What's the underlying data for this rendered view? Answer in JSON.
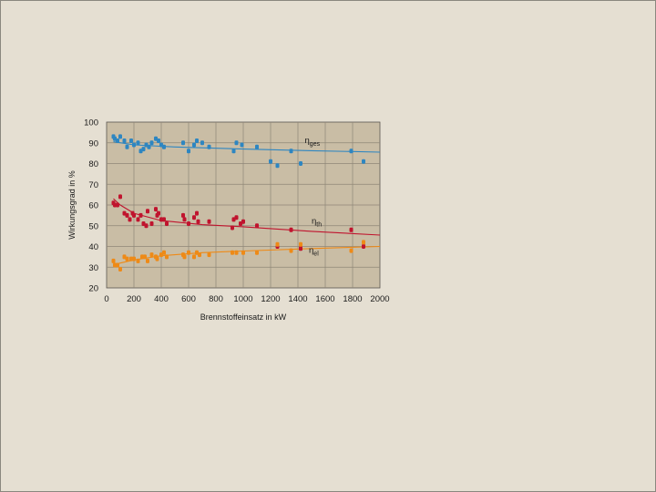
{
  "chart_data": {
    "type": "scatter",
    "xlabel": "Brennstoffeinsatz in kW",
    "ylabel": "Wirkungsgrad in %",
    "xlim": [
      0,
      2000
    ],
    "ylim": [
      20,
      100
    ],
    "xticks": [
      0,
      200,
      400,
      600,
      800,
      1000,
      1200,
      1400,
      1600,
      1800,
      2000
    ],
    "yticks": [
      20,
      30,
      40,
      50,
      60,
      70,
      80,
      90,
      100
    ],
    "grid": true,
    "background": "#c9bda5",
    "series": [
      {
        "name": "ηges",
        "label_main": "η",
        "label_sub": "ges",
        "color": "#2e86c1",
        "points": [
          [
            50,
            93
          ],
          [
            60,
            92
          ],
          [
            80,
            91
          ],
          [
            100,
            93
          ],
          [
            130,
            91
          ],
          [
            150,
            88
          ],
          [
            180,
            91
          ],
          [
            200,
            89
          ],
          [
            230,
            90
          ],
          [
            250,
            86
          ],
          [
            270,
            87
          ],
          [
            290,
            89
          ],
          [
            310,
            88
          ],
          [
            330,
            90
          ],
          [
            360,
            92
          ],
          [
            380,
            91
          ],
          [
            400,
            89
          ],
          [
            420,
            88
          ],
          [
            560,
            90
          ],
          [
            600,
            86
          ],
          [
            640,
            89
          ],
          [
            660,
            91
          ],
          [
            700,
            90
          ],
          [
            750,
            88
          ],
          [
            930,
            86
          ],
          [
            950,
            90
          ],
          [
            990,
            89
          ],
          [
            1100,
            88
          ],
          [
            1200,
            81
          ],
          [
            1250,
            79
          ],
          [
            1350,
            86
          ],
          [
            1420,
            80
          ],
          [
            1790,
            86
          ],
          [
            1880,
            81
          ]
        ],
        "trend": [
          [
            50,
            90.5
          ],
          [
            200,
            89
          ],
          [
            500,
            88
          ],
          [
            1000,
            87
          ],
          [
            1500,
            86.2
          ],
          [
            2000,
            85.5
          ]
        ]
      },
      {
        "name": "ηth",
        "label_main": "η",
        "label_sub": "th",
        "color": "#c0142e",
        "points": [
          [
            50,
            61
          ],
          [
            60,
            60
          ],
          [
            80,
            60
          ],
          [
            100,
            64
          ],
          [
            130,
            56
          ],
          [
            150,
            55
          ],
          [
            170,
            53
          ],
          [
            190,
            56
          ],
          [
            200,
            55
          ],
          [
            230,
            53
          ],
          [
            250,
            55
          ],
          [
            270,
            51
          ],
          [
            290,
            50
          ],
          [
            300,
            57
          ],
          [
            330,
            51
          ],
          [
            360,
            58
          ],
          [
            370,
            55
          ],
          [
            380,
            56
          ],
          [
            400,
            53
          ],
          [
            420,
            53
          ],
          [
            440,
            51
          ],
          [
            560,
            55
          ],
          [
            570,
            53
          ],
          [
            600,
            51
          ],
          [
            640,
            54
          ],
          [
            660,
            56
          ],
          [
            670,
            52
          ],
          [
            750,
            52
          ],
          [
            920,
            49
          ],
          [
            930,
            53
          ],
          [
            950,
            54
          ],
          [
            980,
            51
          ],
          [
            1000,
            52
          ],
          [
            1100,
            50
          ],
          [
            1250,
            40
          ],
          [
            1350,
            48
          ],
          [
            1420,
            39
          ],
          [
            1790,
            48
          ],
          [
            1880,
            40
          ]
        ],
        "trend": [
          [
            50,
            63
          ],
          [
            100,
            60
          ],
          [
            200,
            56
          ],
          [
            400,
            52.5
          ],
          [
            700,
            50.5
          ],
          [
            1000,
            49.5
          ],
          [
            1500,
            47.3
          ],
          [
            2000,
            45.5
          ]
        ]
      },
      {
        "name": "ηel",
        "label_main": "η",
        "label_sub": "el",
        "color": "#ee8a17",
        "points": [
          [
            50,
            33
          ],
          [
            60,
            31
          ],
          [
            80,
            31
          ],
          [
            100,
            29
          ],
          [
            130,
            35
          ],
          [
            150,
            34
          ],
          [
            180,
            34
          ],
          [
            200,
            34
          ],
          [
            230,
            33
          ],
          [
            260,
            35
          ],
          [
            280,
            35
          ],
          [
            300,
            33
          ],
          [
            330,
            36
          ],
          [
            360,
            35
          ],
          [
            370,
            34
          ],
          [
            400,
            36
          ],
          [
            420,
            37
          ],
          [
            440,
            35
          ],
          [
            560,
            36
          ],
          [
            570,
            35
          ],
          [
            600,
            37
          ],
          [
            640,
            35
          ],
          [
            660,
            37
          ],
          [
            680,
            36
          ],
          [
            750,
            36
          ],
          [
            920,
            37
          ],
          [
            950,
            37
          ],
          [
            1000,
            37
          ],
          [
            1100,
            37
          ],
          [
            1250,
            41
          ],
          [
            1350,
            38
          ],
          [
            1420,
            41
          ],
          [
            1790,
            38
          ],
          [
            1880,
            42
          ]
        ],
        "trend": [
          [
            50,
            31
          ],
          [
            100,
            32
          ],
          [
            200,
            33.5
          ],
          [
            400,
            35.5
          ],
          [
            700,
            37
          ],
          [
            1000,
            37.8
          ],
          [
            1500,
            39
          ],
          [
            2000,
            40
          ]
        ]
      }
    ]
  }
}
